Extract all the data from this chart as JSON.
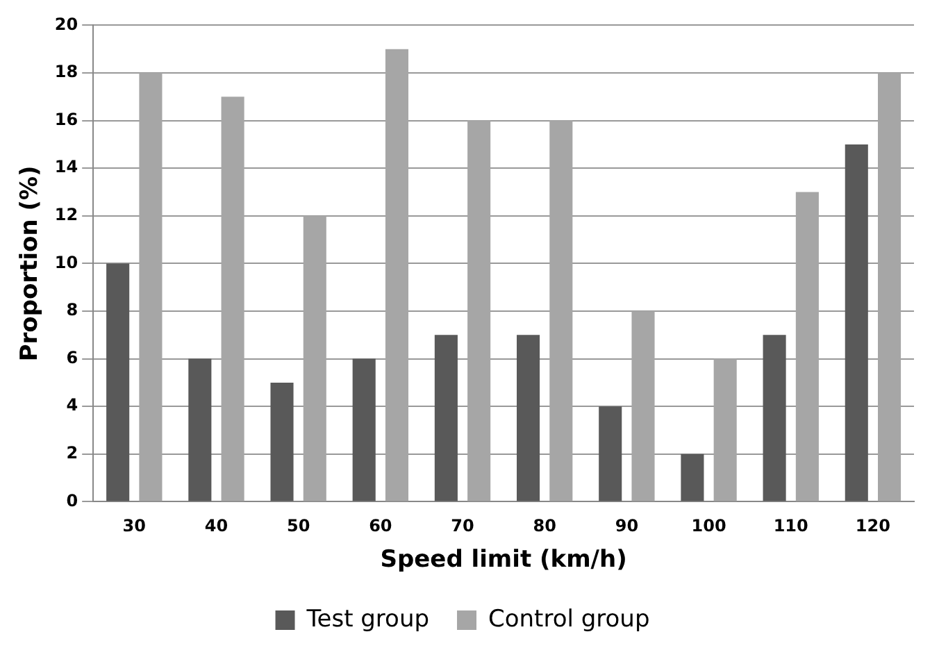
{
  "chart_data": {
    "type": "bar",
    "xlabel": "Speed limit (km/h)",
    "ylabel": "Proportion (%)",
    "categories": [
      "30",
      "40",
      "50",
      "60",
      "70",
      "80",
      "90",
      "100",
      "110",
      "120"
    ],
    "series": [
      {
        "name": "Test group",
        "color": "#595959",
        "values": [
          10,
          6,
          5,
          6,
          7,
          7,
          4,
          2,
          7,
          15
        ]
      },
      {
        "name": "Control group",
        "color": "#a6a6a6",
        "values": [
          18,
          17,
          12,
          19,
          16,
          16,
          8,
          6,
          13,
          18
        ]
      }
    ],
    "ylim": [
      0,
      20
    ],
    "yticks": [
      0,
      2,
      4,
      6,
      8,
      10,
      12,
      14,
      16,
      18,
      20
    ],
    "grid": "y",
    "legend": "bottom"
  }
}
